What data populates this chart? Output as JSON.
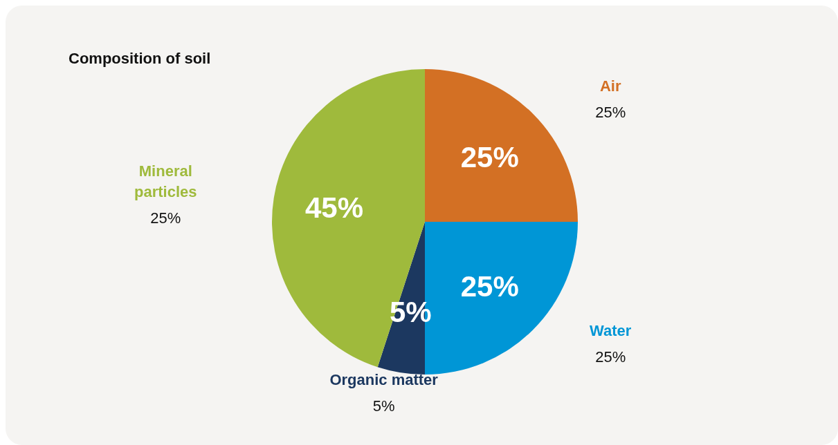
{
  "chart_data": {
    "type": "pie",
    "title": "Composition of soil",
    "categories": [
      "Air",
      "Water",
      "Organic matter",
      "Mineral particles"
    ],
    "values": [
      25,
      25,
      5,
      45
    ],
    "colors": [
      "#d37024",
      "#0096d6",
      "#1c3860",
      "#9fba3c"
    ],
    "value_labels": [
      "25%",
      "25%",
      "5%",
      "45%"
    ],
    "annotations": [
      "25%",
      "25%",
      "5%",
      "25%"
    ],
    "legend": false
  }
}
